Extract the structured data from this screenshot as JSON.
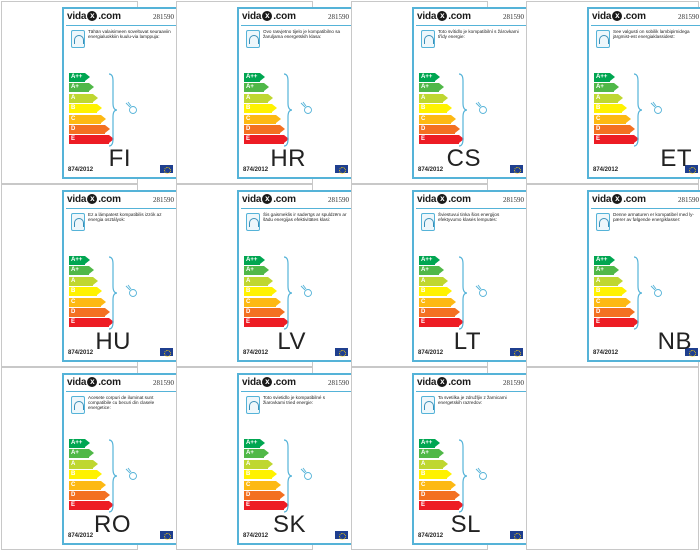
{
  "product_number": "281590",
  "regulation": "874/2012",
  "brand": {
    "pre": "vida",
    "mark": "x",
    "post": ".com"
  },
  "classes": [
    {
      "name": "A++",
      "color": "#00a651"
    },
    {
      "name": "A+",
      "color": "#50b848"
    },
    {
      "name": "A",
      "color": "#bfd730"
    },
    {
      "name": "B",
      "color": "#fff200"
    },
    {
      "name": "C",
      "color": "#fdb913"
    },
    {
      "name": "D",
      "color": "#f37021"
    },
    {
      "name": "E",
      "color": "#ed1c24"
    }
  ],
  "labels": [
    {
      "code": "FI",
      "text": "Tähän valaisimeen soveltuvat seuraaviin energialuokkiin kuulu-via lamppuja:"
    },
    {
      "code": "HR",
      "text": "Ovo rasvjetno tijelo je kompatibilno sa žaruljama energetskih klasa:"
    },
    {
      "code": "CS",
      "text": "Toto svítidlo je kompatibilní s žárovkami třídy energie:"
    },
    {
      "code": "ET",
      "text": "See valgusti on sobilik lambipirnidega järgmist-est energiaklassidest:"
    },
    {
      "code": "HU",
      "text": "Ez a lámpatest kompatibilis izzók az energia osztályok:"
    },
    {
      "code": "LV",
      "text": "Šis gaismeklis ir saderīgs ar spuldzēm ar šādu energijas efektivitātes klasi:"
    },
    {
      "code": "LT",
      "text": "Šviestuvui tinka šios energijos efektyvumo klasės lemputės:"
    },
    {
      "code": "NB",
      "text": "Denne armaturen er kompatibel med ly-pærer av følgende energiklasser:"
    },
    {
      "code": "RO",
      "text": "Acesete corpuri de iluminat sunt compatibile cu becuri din clasele energetice:"
    },
    {
      "code": "SK",
      "text": "Toto svietidlo je kompatibilné s žiarovkami tried energie:"
    },
    {
      "code": "SL",
      "text": "Ta svetilka je združljiv z žarnicami energetskih razredov:"
    }
  ]
}
